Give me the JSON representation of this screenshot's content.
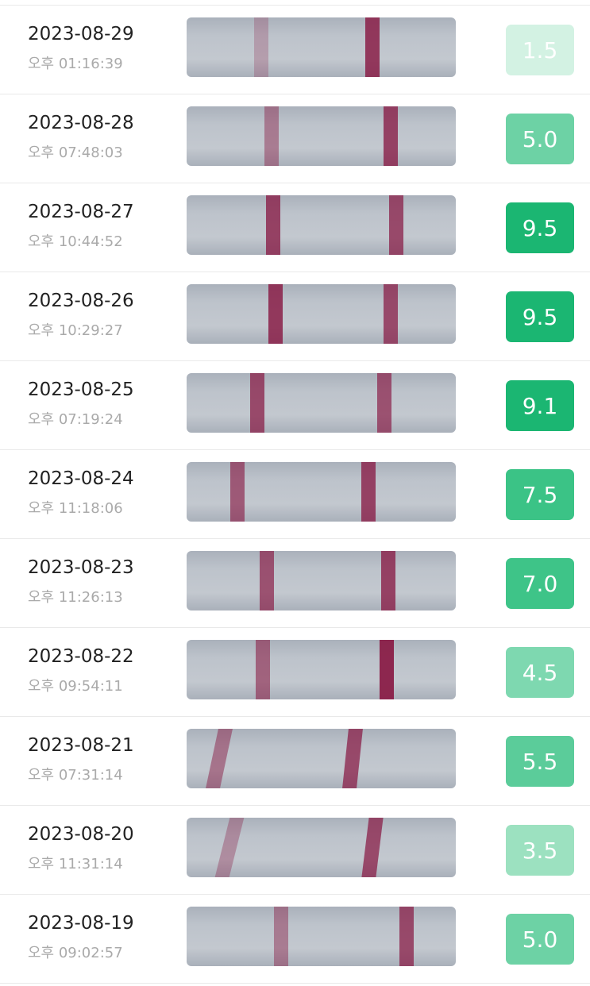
{
  "records": [
    {
      "date": "2023-08-29",
      "time": "오후 01:16:39",
      "score": "1.5",
      "color": "#d3f2e3"
    },
    {
      "date": "2023-08-28",
      "time": "오후 07:48:03",
      "score": "5.0",
      "color": "#6dd2a5"
    },
    {
      "date": "2023-08-27",
      "time": "오후 10:44:52",
      "score": "9.5",
      "color": "#1bb672"
    },
    {
      "date": "2023-08-26",
      "time": "오후 10:29:27",
      "score": "9.5",
      "color": "#1bb672"
    },
    {
      "date": "2023-08-25",
      "time": "오후 07:19:24",
      "score": "9.1",
      "color": "#1bb672"
    },
    {
      "date": "2023-08-24",
      "time": "오후 11:18:06",
      "score": "7.5",
      "color": "#3bc386"
    },
    {
      "date": "2023-08-23",
      "time": "오후 11:26:13",
      "score": "7.0",
      "color": "#3ec488"
    },
    {
      "date": "2023-08-22",
      "time": "오후 09:54:11",
      "score": "4.5",
      "color": "#7ed8b0"
    },
    {
      "date": "2023-08-21",
      "time": "오후 07:31:14",
      "score": "5.5",
      "color": "#5bcc9a"
    },
    {
      "date": "2023-08-20",
      "time": "오후 11:31:14",
      "score": "3.5",
      "color": "#9ce1c0"
    },
    {
      "date": "2023-08-19",
      "time": "오후 09:02:57",
      "score": "5.0",
      "color": "#6dd2a5"
    }
  ]
}
